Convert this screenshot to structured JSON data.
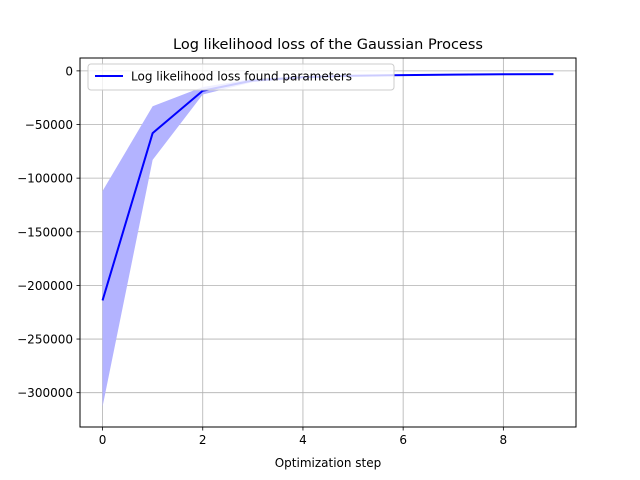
{
  "chart_data": {
    "type": "line",
    "title": "Log likelihood loss of the Gaussian Process",
    "xlabel": "Optimization step",
    "ylabel": "",
    "xlim": [
      -0.45,
      9.45
    ],
    "ylim": [
      -332000,
      12000
    ],
    "x_ticks": [
      0,
      2,
      4,
      6,
      8
    ],
    "x_tick_labels": [
      "0",
      "2",
      "4",
      "6",
      "8"
    ],
    "y_ticks": [
      0,
      -50000,
      -100000,
      -150000,
      -200000,
      -250000,
      -300000
    ],
    "y_tick_labels": [
      "0",
      "−50000",
      "−100000",
      "−150000",
      "−200000",
      "−250000",
      "−300000"
    ],
    "grid": true,
    "legend_position": "upper-left",
    "series": [
      {
        "name": "Log likelihood loss found parameters",
        "color": "#0000ff",
        "x": [
          0,
          1,
          2,
          3,
          4,
          5,
          6,
          7,
          8,
          9
        ],
        "y": [
          -214000,
          -58000,
          -18500,
          -9000,
          -6000,
          -4500,
          -4000,
          -3500,
          -3200,
          -3000
        ],
        "band_upper": [
          -112000,
          -33000,
          -15000,
          -7500,
          -5200,
          -4000,
          -3600,
          -3200,
          -3000,
          -2800
        ],
        "band_lower": [
          -313000,
          -83000,
          -22000,
          -10500,
          -6800,
          -5000,
          -4400,
          -3800,
          -3400,
          -3200
        ],
        "band_color": "#b3b3ff"
      }
    ]
  }
}
